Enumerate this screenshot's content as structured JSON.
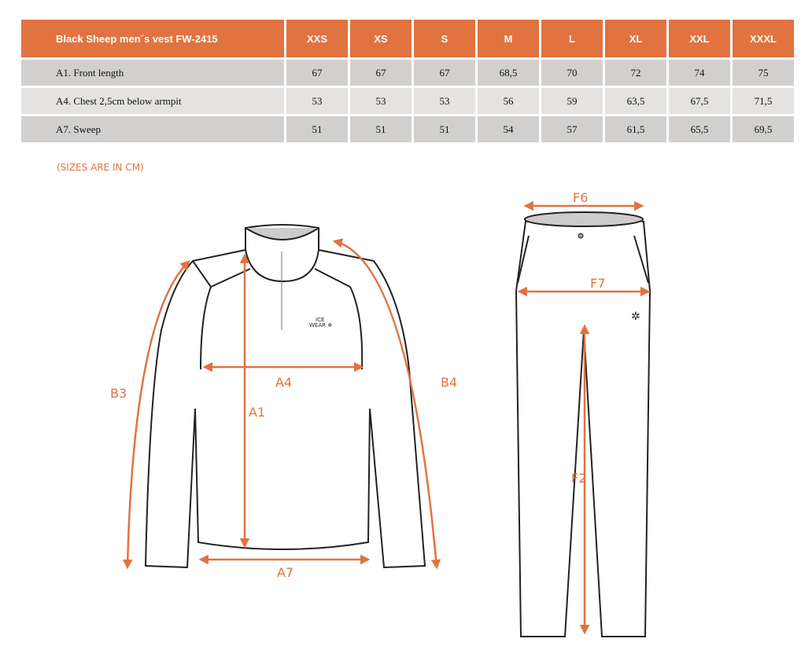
{
  "table": {
    "title": "Black Sheep men´s vest FW-2415",
    "sizes": [
      "XXS",
      "XS",
      "S",
      "M",
      "L",
      "XL",
      "XXL",
      "XXXL"
    ],
    "rows": [
      {
        "label": "A1. Front length",
        "values": [
          "67",
          "67",
          "67",
          "68,5",
          "70",
          "72",
          "74",
          "75"
        ]
      },
      {
        "label": "A4. Chest 2,5cm below armpit",
        "values": [
          "53",
          "53",
          "53",
          "56",
          "59",
          "63,5",
          "67,5",
          "71,5"
        ]
      },
      {
        "label": "A7. Sweep",
        "values": [
          "51",
          "51",
          "51",
          "54",
          "57",
          "61,5",
          "65,5",
          "69,5"
        ]
      }
    ]
  },
  "note": "(SIZES ARE IN CM)",
  "diagram": {
    "accent_color": "#e07340",
    "jacket_labels": {
      "a1": "A1",
      "a4": "A4",
      "a7": "A7",
      "b3": "B3",
      "b4": "B4"
    },
    "logo": "ICE WEAR",
    "pants_labels": {
      "f2": "F2",
      "f6": "F6",
      "f7": "F7"
    }
  }
}
